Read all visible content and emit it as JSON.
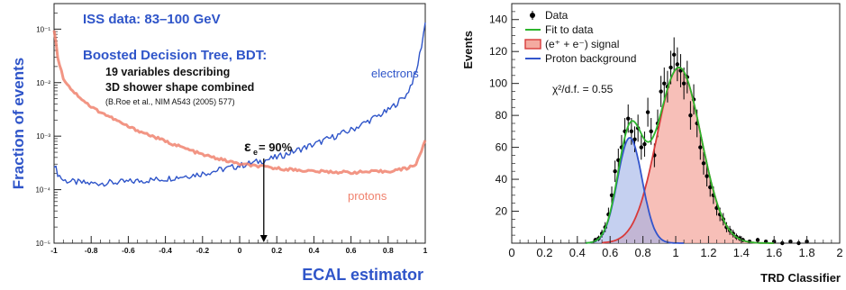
{
  "chart_data": [
    {
      "type": "line",
      "xlabel": "ECAL estimator",
      "ylabel": "Fraction of events",
      "log_y": true,
      "xlim": [
        -1,
        1
      ],
      "ylim": [
        1e-05,
        0.3
      ],
      "x_ticks": [
        "-1",
        "-0.8",
        "-0.6",
        "-0.4",
        "-0.2",
        "0",
        "0.2",
        "0.4",
        "0.6",
        "0.8",
        "1"
      ],
      "y_ticks": [
        "10⁻⁵",
        "10⁻⁴",
        "10⁻³",
        "10⁻²",
        "10⁻¹"
      ],
      "annotations": {
        "iss": "ISS data: 83–100 GeV",
        "bdt": "Boosted Decision Tree, BDT:",
        "line1": "19 variables describing",
        "line2": "3D shower shape combined",
        "ref": "(B.Roe et al., NIM A543 (2005) 577)",
        "efficiency": "ε",
        "efficiency_sub": "e",
        "efficiency_val": " = 90%",
        "cut_x": 0.13
      },
      "series": [
        {
          "name": "electrons",
          "color": "#2f55c9",
          "x": [
            -1,
            -0.98,
            -0.95,
            -0.9,
            -0.8,
            -0.6,
            -0.4,
            -0.2,
            0,
            0.2,
            0.4,
            0.6,
            0.8,
            0.9,
            0.95,
            0.98,
            1
          ],
          "y": [
            0.0003,
            0.0002,
            0.00015,
            0.00014,
            0.00013,
            0.00014,
            0.00016,
            0.0002,
            0.00028,
            0.0004,
            0.0007,
            0.0013,
            0.003,
            0.006,
            0.015,
            0.05,
            0.13
          ]
        },
        {
          "name": "protons",
          "color": "#f0826e",
          "x": [
            -1,
            -0.98,
            -0.95,
            -0.9,
            -0.8,
            -0.6,
            -0.4,
            -0.2,
            0,
            0.2,
            0.4,
            0.6,
            0.8,
            0.9,
            0.95,
            1
          ],
          "y": [
            0.1,
            0.03,
            0.012,
            0.007,
            0.0035,
            0.0015,
            0.0008,
            0.00045,
            0.0003,
            0.00025,
            0.00022,
            0.00021,
            0.00022,
            0.00025,
            0.0003,
            0.0008
          ]
        }
      ]
    },
    {
      "type": "area",
      "xlabel": "TRD Classifier",
      "ylabel": "Events",
      "xlim": [
        0,
        2
      ],
      "ylim": [
        0,
        150
      ],
      "x_ticks": [
        "0",
        "0.2",
        "0.4",
        "0.6",
        "0.8",
        "1",
        "1.2",
        "1.4",
        "1.6",
        "1.8",
        "2"
      ],
      "y_ticks": [
        "20",
        "40",
        "60",
        "80",
        "100",
        "120",
        "140"
      ],
      "legend": [
        "Data",
        "Fit to data",
        "(e⁺ + e⁻) signal",
        "Proton background"
      ],
      "legend_placement": "top-left",
      "annotation": "χ²/d.f. = 0.55",
      "colors": {
        "data": "#000000",
        "fit": "#2db52d",
        "signal": "#d83a3a",
        "background": "#3355cc"
      },
      "data_points": {
        "x": [
          0.51,
          0.53,
          0.55,
          0.57,
          0.59,
          0.61,
          0.63,
          0.65,
          0.67,
          0.69,
          0.71,
          0.73,
          0.75,
          0.77,
          0.79,
          0.81,
          0.83,
          0.85,
          0.87,
          0.89,
          0.91,
          0.93,
          0.95,
          0.97,
          0.99,
          1.01,
          1.03,
          1.05,
          1.07,
          1.09,
          1.11,
          1.13,
          1.15,
          1.17,
          1.19,
          1.21,
          1.23,
          1.25,
          1.27,
          1.29,
          1.31,
          1.33,
          1.35,
          1.37,
          1.39,
          1.41,
          1.45,
          1.5,
          1.55,
          1.6,
          1.65,
          1.7,
          1.75,
          1.8
        ],
        "y": [
          2,
          3,
          6,
          10,
          18,
          30,
          45,
          52,
          60,
          70,
          78,
          70,
          65,
          72,
          60,
          62,
          82,
          70,
          55,
          75,
          95,
          100,
          98,
          110,
          118,
          112,
          108,
          100,
          104,
          80,
          90,
          75,
          60,
          50,
          42,
          35,
          30,
          22,
          18,
          15,
          10,
          8,
          6,
          4,
          3,
          2,
          1,
          2,
          1,
          1,
          0,
          1,
          0,
          1
        ]
      },
      "signal_model": {
        "mean": 1.02,
        "sigma": 0.135,
        "amplitude": 110
      },
      "background_model": {
        "mean": 0.72,
        "sigma": 0.075,
        "amplitude": 66
      }
    }
  ]
}
